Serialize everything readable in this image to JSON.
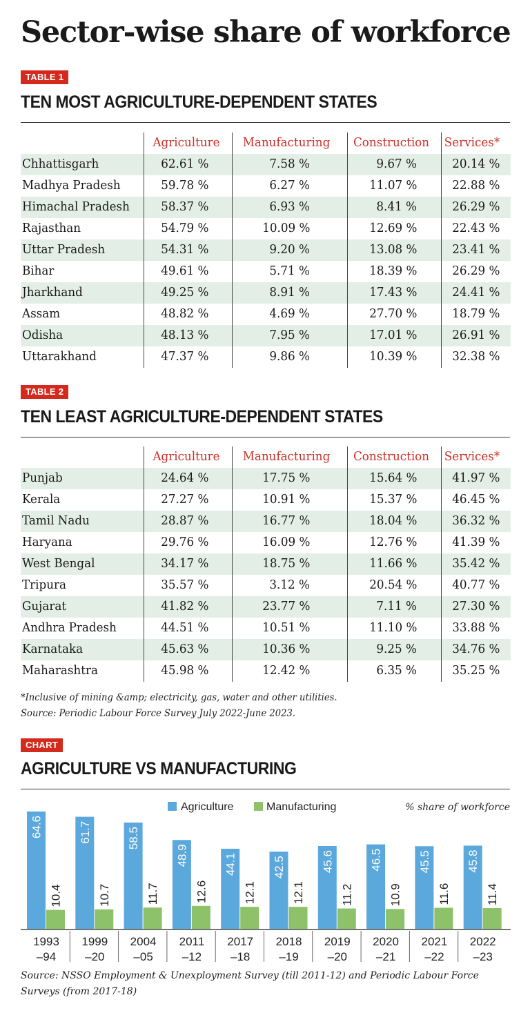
{
  "title": "Sector-wise share of workforce",
  "table1": {
    "badge": "TABLE 1",
    "heading": "TEN MOST AGRICULTURE-DEPENDENT STATES",
    "columns": [
      "Agriculture",
      "Manufacturing",
      "Construction",
      "Services*"
    ],
    "rows": [
      {
        "state": "Chhattisgarh",
        "values": [
          "62.61 %",
          "7.58 %",
          "9.67 %",
          "20.14 %"
        ]
      },
      {
        "state": "Madhya Pradesh",
        "values": [
          "59.78 %",
          "6.27 %",
          "11.07 %",
          "22.88 %"
        ]
      },
      {
        "state": "Himachal Pradesh",
        "values": [
          "58.37 %",
          "6.93 %",
          "8.41 %",
          "26.29 %"
        ]
      },
      {
        "state": "Rajasthan",
        "values": [
          "54.79 %",
          "10.09 %",
          "12.69 %",
          "22.43 %"
        ]
      },
      {
        "state": "Uttar Pradesh",
        "values": [
          "54.31 %",
          "9.20 %",
          "13.08 %",
          "23.41 %"
        ]
      },
      {
        "state": "Bihar",
        "values": [
          "49.61 %",
          "5.71 %",
          "18.39 %",
          "26.29 %"
        ]
      },
      {
        "state": "Jharkhand",
        "values": [
          "49.25 %",
          "8.91 %",
          "17.43 %",
          "24.41 %"
        ]
      },
      {
        "state": "Assam",
        "values": [
          "48.82 %",
          "4.69 %",
          "27.70 %",
          "18.79 %"
        ]
      },
      {
        "state": "Odisha",
        "values": [
          "48.13 %",
          "7.95 %",
          "17.01 %",
          "26.91 %"
        ]
      },
      {
        "state": "Uttarakhand",
        "values": [
          "47.37 %",
          "9.86 %",
          "10.39 %",
          "32.38 %"
        ]
      }
    ]
  },
  "table2": {
    "badge": "TABLE 2",
    "heading": "TEN LEAST AGRICULTURE-DEPENDENT STATES",
    "columns": [
      "Agriculture",
      "Manufacturing",
      "Construction",
      "Services*"
    ],
    "rows": [
      {
        "state": "Punjab",
        "values": [
          "24.64 %",
          "17.75 %",
          "15.64 %",
          "41.97 %"
        ]
      },
      {
        "state": "Kerala",
        "values": [
          "27.27 %",
          "10.91 %",
          "15.37 %",
          "46.45 %"
        ]
      },
      {
        "state": "Tamil Nadu",
        "values": [
          "28.87 %",
          "16.77 %",
          "18.04 %",
          "36.32 %"
        ]
      },
      {
        "state": "Haryana",
        "values": [
          "29.76 %",
          "16.09 %",
          "12.76 %",
          "41.39 %"
        ]
      },
      {
        "state": "West Bengal",
        "values": [
          "34.17 %",
          "18.75 %",
          "11.66 %",
          "35.42 %"
        ]
      },
      {
        "state": "Tripura",
        "values": [
          "35.57 %",
          "3.12 %",
          "20.54 %",
          "40.77 %"
        ]
      },
      {
        "state": "Gujarat",
        "values": [
          "41.82 %",
          "23.77 %",
          "7.11 %",
          "27.30 %"
        ]
      },
      {
        "state": "Andhra Pradesh",
        "values": [
          "44.51 %",
          "10.51 %",
          "11.10 %",
          "33.88 %"
        ]
      },
      {
        "state": "Karnataka",
        "values": [
          "45.63 %",
          "10.36 %",
          "9.25 %",
          "34.76 %"
        ]
      },
      {
        "state": "Maharashtra",
        "values": [
          "45.98 %",
          "12.42 %",
          "6.35 %",
          "35.25 %"
        ]
      }
    ]
  },
  "notes": {
    "footnote": "*Inclusive of mining &amp; electricity, gas, water and other utilities.",
    "source": "Source: Periodic Labour Force Survey July 2022-June 2023."
  },
  "chart_section": {
    "badge": "CHART",
    "heading": "AGRICULTURE VS MANUFACTURING",
    "source": "Source: NSSO Employment & Unexployment Survey (till 2011-12) and Periodic Labour Force Surveys (from 2017-18)"
  },
  "colors": {
    "badge": "#d42a1d",
    "header_text": "#c9322a",
    "row_shade": "#e3efe6",
    "agriculture": "#5ba8dc",
    "manufacturing": "#8dc16a"
  },
  "chart_data": {
    "type": "bar",
    "categories": [
      [
        "1993",
        "–94"
      ],
      [
        "1999",
        "–20"
      ],
      [
        "2004",
        "–05"
      ],
      [
        "2011",
        "–12"
      ],
      [
        "2017",
        "–18"
      ],
      [
        "2018",
        "–19"
      ],
      [
        "2019",
        "–20"
      ],
      [
        "2020",
        "–21"
      ],
      [
        "2021",
        "–22"
      ],
      [
        "2022",
        "–23"
      ]
    ],
    "series": [
      {
        "name": "Agriculture",
        "values": [
          64.6,
          61.7,
          58.5,
          48.9,
          44.1,
          42.5,
          45.6,
          46.5,
          45.5,
          45.8
        ],
        "labels": [
          "64.6",
          "61.7",
          "58.5",
          "48.9",
          "44.1",
          "42.5",
          "45.6",
          "46.5",
          "45.5",
          "45.8"
        ]
      },
      {
        "name": "Manufacturing",
        "values": [
          10.4,
          10.7,
          11.7,
          12.6,
          12.1,
          12.1,
          11.2,
          10.9,
          11.6,
          11.4
        ],
        "labels": [
          "10.4",
          "10.7",
          "11.7",
          "12.6",
          "12.1",
          "12.1",
          "11.2",
          "10.9",
          "11.6",
          "11.4"
        ]
      }
    ],
    "unit_note": "% share of workforce",
    "ylim": [
      0,
      64.6
    ],
    "legend": "top-center"
  }
}
